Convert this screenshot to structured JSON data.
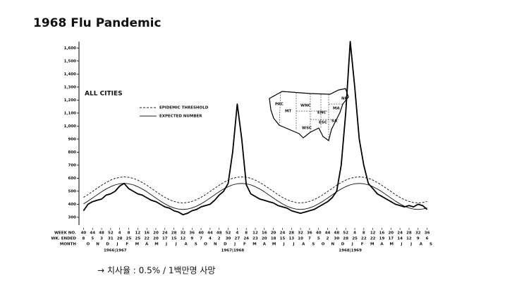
{
  "slide": {
    "title": "1968 Flu Pandemic",
    "note": "→ 치사율 : 0.5% / 1백만명 사망"
  },
  "chart_data": {
    "type": "line",
    "title": "ALL CITIES",
    "x": [
      0,
      2,
      4,
      6,
      8,
      10,
      12,
      14,
      16,
      18,
      20,
      22,
      24,
      26,
      28,
      30,
      32,
      34,
      36,
      38,
      40,
      42,
      44,
      46,
      48,
      50,
      52,
      54,
      56,
      58,
      60,
      62,
      64,
      66,
      68,
      70,
      72,
      74,
      76,
      78,
      80,
      82,
      84,
      86,
      88,
      90,
      92,
      94,
      96,
      98,
      100,
      102,
      104,
      106,
      108,
      110,
      112,
      114,
      116,
      118,
      120,
      122,
      124,
      126,
      128,
      130,
      132,
      134,
      136,
      138,
      140,
      142,
      144,
      146,
      148,
      150,
      152
    ],
    "xlim": [
      -2,
      154
    ],
    "xticks": [
      {
        "value": 0,
        "label": "40"
      },
      {
        "value": 4,
        "label": "44"
      },
      {
        "value": 8,
        "label": "48"
      },
      {
        "value": 12,
        "label": "52"
      },
      {
        "value": 16,
        "label": "4"
      },
      {
        "value": 20,
        "label": "8"
      },
      {
        "value": 24,
        "label": "12"
      },
      {
        "value": 28,
        "label": "16"
      },
      {
        "value": 32,
        "label": "20"
      },
      {
        "value": 36,
        "label": "24"
      },
      {
        "value": 40,
        "label": "28"
      },
      {
        "value": 44,
        "label": "32"
      },
      {
        "value": 48,
        "label": "36"
      },
      {
        "value": 52,
        "label": "40"
      },
      {
        "value": 56,
        "label": "44"
      },
      {
        "value": 60,
        "label": "48"
      },
      {
        "value": 64,
        "label": "52"
      },
      {
        "value": 68,
        "label": "4"
      },
      {
        "value": 72,
        "label": "8"
      },
      {
        "value": 76,
        "label": "12"
      },
      {
        "value": 80,
        "label": "16"
      },
      {
        "value": 84,
        "label": "20"
      },
      {
        "value": 88,
        "label": "24"
      },
      {
        "value": 92,
        "label": "28"
      },
      {
        "value": 96,
        "label": "32"
      },
      {
        "value": 100,
        "label": "36"
      },
      {
        "value": 104,
        "label": "40"
      },
      {
        "value": 108,
        "label": "44"
      },
      {
        "value": 112,
        "label": "48"
      },
      {
        "value": 116,
        "label": "52"
      },
      {
        "value": 120,
        "label": "4"
      },
      {
        "value": 124,
        "label": "8"
      },
      {
        "value": 128,
        "label": "12"
      },
      {
        "value": 132,
        "label": "16"
      },
      {
        "value": 136,
        "label": "20"
      },
      {
        "value": 140,
        "label": "24"
      },
      {
        "value": 144,
        "label": "28"
      },
      {
        "value": 148,
        "label": "32"
      },
      {
        "value": 152,
        "label": "36"
      }
    ],
    "row_labels": [
      "WEEK NO.",
      "WK. ENDED",
      "MONTH"
    ],
    "week_ended": [
      8,
      5,
      3,
      31,
      28,
      25,
      25,
      22,
      20,
      17,
      15,
      12,
      9,
      7,
      4,
      2,
      30,
      27,
      24,
      23,
      20,
      18,
      15,
      13,
      10,
      7,
      5,
      2,
      30,
      28,
      25,
      22,
      22,
      19,
      17,
      14,
      12,
      9,
      6
    ],
    "months": [
      {
        "value": 2,
        "label": "O"
      },
      {
        "value": 6.3,
        "label": "N"
      },
      {
        "value": 10.7,
        "label": "D"
      },
      {
        "value": 15,
        "label": "J"
      },
      {
        "value": 19.3,
        "label": "F"
      },
      {
        "value": 23.7,
        "label": "M"
      },
      {
        "value": 28,
        "label": "A"
      },
      {
        "value": 32.3,
        "label": "M"
      },
      {
        "value": 36.7,
        "label": "J"
      },
      {
        "value": 41,
        "label": "J"
      },
      {
        "value": 45.3,
        "label": "A"
      },
      {
        "value": 49.7,
        "label": "S"
      },
      {
        "value": 54,
        "label": "O"
      },
      {
        "value": 58.3,
        "label": "N"
      },
      {
        "value": 62.7,
        "label": "D"
      },
      {
        "value": 67,
        "label": "J"
      },
      {
        "value": 71.3,
        "label": "F"
      },
      {
        "value": 75.7,
        "label": "M"
      },
      {
        "value": 80,
        "label": "A"
      },
      {
        "value": 84.3,
        "label": "M"
      },
      {
        "value": 88.7,
        "label": "J"
      },
      {
        "value": 93,
        "label": "J"
      },
      {
        "value": 97.3,
        "label": "A"
      },
      {
        "value": 101.7,
        "label": "S"
      },
      {
        "value": 106,
        "label": "O"
      },
      {
        "value": 110.3,
        "label": "N"
      },
      {
        "value": 114.7,
        "label": "D"
      },
      {
        "value": 119,
        "label": "J"
      },
      {
        "value": 123.3,
        "label": "F"
      },
      {
        "value": 127.7,
        "label": "M"
      },
      {
        "value": 132,
        "label": "A"
      },
      {
        "value": 136.3,
        "label": "M"
      },
      {
        "value": 140.7,
        "label": "J"
      },
      {
        "value": 145,
        "label": "J"
      },
      {
        "value": 149.3,
        "label": "A"
      },
      {
        "value": 153.7,
        "label": "S"
      }
    ],
    "seasons": [
      {
        "value": 14,
        "label": "1966|1967"
      },
      {
        "value": 66,
        "label": "1967|1968"
      },
      {
        "value": 118,
        "label": "1968|1969"
      }
    ],
    "ylim": [
      240,
      1650
    ],
    "yticks": [
      300,
      400,
      500,
      600,
      700,
      800,
      900,
      {
        "value": 1000,
        "label": "1,000"
      },
      {
        "value": 1100,
        "label": "1,100"
      },
      {
        "value": 1200,
        "label": "1,200"
      },
      {
        "value": 1300,
        "label": "1,300"
      },
      {
        "value": 1400,
        "label": "1,400"
      },
      {
        "value": 1500,
        "label": "1,500"
      },
      {
        "value": 1600,
        "label": "1,600"
      }
    ],
    "series": [
      {
        "name": "EPIDEMIC THRESHOLD",
        "color": "#222222",
        "dashed": true,
        "values": [
          453,
          474,
          498,
          522,
          546,
          567,
          585,
          599,
          607,
          610,
          607,
          599,
          585,
          567,
          546,
          522,
          498,
          474,
          453,
          435,
          422,
          413,
          410,
          413,
          422,
          435,
          453,
          474,
          498,
          522,
          546,
          567,
          585,
          599,
          607,
          610,
          607,
          599,
          585,
          567,
          546,
          522,
          498,
          474,
          453,
          435,
          422,
          413,
          410,
          413,
          422,
          435,
          453,
          474,
          498,
          522,
          546,
          567,
          585,
          599,
          607,
          610,
          607,
          599,
          585,
          567,
          546,
          522,
          498,
          474,
          453,
          435,
          422,
          413,
          410,
          413,
          422
        ]
      },
      {
        "name": "EXPECTED NUMBER",
        "color": "#222222",
        "dashed": false,
        "values": [
          403,
          424,
          448,
          472,
          496,
          517,
          535,
          549,
          557,
          560,
          557,
          549,
          535,
          517,
          496,
          472,
          448,
          424,
          403,
          385,
          372,
          363,
          360,
          363,
          372,
          385,
          403,
          424,
          448,
          472,
          496,
          517,
          535,
          549,
          557,
          560,
          557,
          549,
          535,
          517,
          496,
          472,
          448,
          424,
          403,
          385,
          372,
          363,
          360,
          363,
          372,
          385,
          403,
          424,
          448,
          472,
          496,
          517,
          535,
          549,
          557,
          560,
          557,
          549,
          535,
          517,
          496,
          472,
          448,
          424,
          403,
          385,
          372,
          363,
          360,
          363,
          372
        ]
      },
      {
        "color": "#000000",
        "dashed": false,
        "values": [
          350,
          400,
          420,
          430,
          440,
          470,
          480,
          500,
          540,
          560,
          520,
          500,
          480,
          470,
          450,
          430,
          420,
          400,
          380,
          370,
          350,
          340,
          320,
          330,
          350,
          360,
          380,
          390,
          400,
          430,
          470,
          500,
          560,
          800,
          1170,
          900,
          550,
          480,
          460,
          440,
          430,
          420,
          410,
          390,
          380,
          370,
          350,
          340,
          330,
          340,
          350,
          360,
          380,
          400,
          420,
          450,
          500,
          700,
          1100,
          1650,
          1300,
          900,
          700,
          560,
          520,
          480,
          460,
          440,
          420,
          400,
          390,
          380,
          390,
          380,
          400,
          390,
          360
        ]
      }
    ]
  },
  "inset_map": {
    "regions": [
      "PAC",
      "MT",
      "WNC",
      "ENC",
      "NE",
      "MA",
      "SA",
      "ESC",
      "WSC"
    ]
  }
}
